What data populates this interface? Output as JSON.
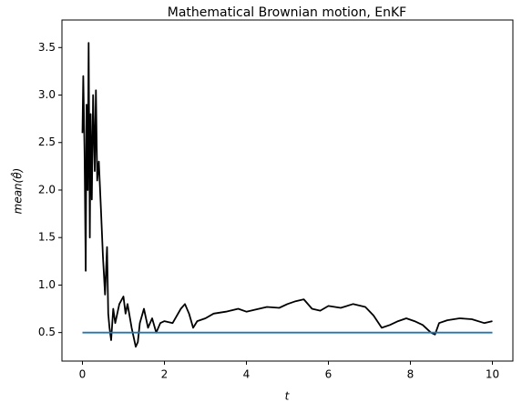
{
  "chart_data": {
    "type": "line",
    "title": "Mathematical Brownian motion, EnKF",
    "xlabel": "t",
    "ylabel": "mean(θ̂)",
    "xlim": [
      -0.5,
      10.5
    ],
    "ylim": [
      0.2,
      3.79
    ],
    "xticks": [
      0,
      2,
      4,
      6,
      8,
      10
    ],
    "yticks": [
      0.5,
      {
        "value": 1,
        "label": "1.0"
      },
      1.5,
      {
        "value": 2,
        "label": "2.0"
      },
      2.5,
      {
        "value": 3,
        "label": "3.0"
      },
      3.5
    ],
    "series": [
      {
        "color": "#000000",
        "x": [
          0,
          0.02,
          0.05,
          0.08,
          0.1,
          0.13,
          0.15,
          0.18,
          0.2,
          0.23,
          0.26,
          0.3,
          0.33,
          0.36,
          0.4,
          0.45,
          0.5,
          0.55,
          0.6,
          0.63,
          0.66,
          0.7,
          0.75,
          0.8,
          0.9,
          1.0,
          1.05,
          1.1,
          1.2,
          1.3,
          1.35,
          1.4,
          1.5,
          1.6,
          1.7,
          1.8,
          1.9,
          2.0,
          2.2,
          2.4,
          2.5,
          2.6,
          2.7,
          2.8,
          3.0,
          3.2,
          3.5,
          3.8,
          4.0,
          4.2,
          4.5,
          4.8,
          5.0,
          5.2,
          5.4,
          5.6,
          5.8,
          6.0,
          6.3,
          6.6,
          6.9,
          7.1,
          7.3,
          7.5,
          7.7,
          7.9,
          8.1,
          8.3,
          8.5,
          8.6,
          8.7,
          8.9,
          9.2,
          9.5,
          9.8,
          10
        ],
        "values": [
          2.6,
          3.2,
          2.4,
          1.15,
          2.9,
          2.0,
          3.55,
          1.5,
          2.8,
          1.9,
          3.0,
          2.2,
          3.05,
          2.1,
          2.3,
          1.8,
          1.3,
          0.9,
          1.4,
          0.7,
          0.55,
          0.42,
          0.75,
          0.6,
          0.8,
          0.88,
          0.7,
          0.8,
          0.55,
          0.35,
          0.4,
          0.6,
          0.75,
          0.55,
          0.65,
          0.5,
          0.6,
          0.62,
          0.6,
          0.75,
          0.8,
          0.7,
          0.55,
          0.62,
          0.65,
          0.7,
          0.72,
          0.75,
          0.72,
          0.74,
          0.77,
          0.76,
          0.8,
          0.83,
          0.85,
          0.75,
          0.73,
          0.78,
          0.76,
          0.8,
          0.77,
          0.68,
          0.55,
          0.58,
          0.62,
          0.65,
          0.62,
          0.58,
          0.5,
          0.48,
          0.6,
          0.63,
          0.65,
          0.64,
          0.6,
          0.62
        ]
      },
      {
        "color": "#1f77b4",
        "x": [
          0,
          10
        ],
        "values": [
          0.5,
          0.5
        ]
      }
    ]
  }
}
